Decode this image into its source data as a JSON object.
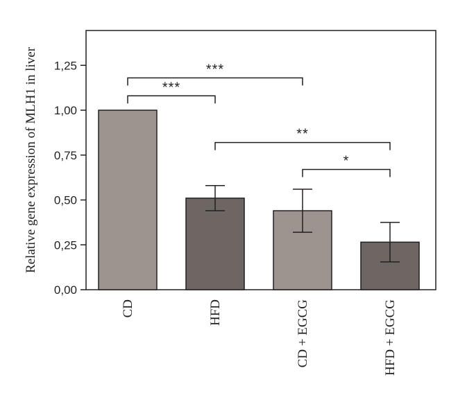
{
  "chart_data": {
    "type": "bar",
    "title": "",
    "xlabel": "",
    "ylabel": "Relative gene expression of MLH1 in liver",
    "ylim": [
      0,
      1.4
    ],
    "yticks": [
      "0,00",
      "0,25",
      "0,50",
      "0,75",
      "1,00",
      "1,25"
    ],
    "ytick_values": [
      0,
      0.25,
      0.5,
      0.75,
      1.0,
      1.25
    ],
    "categories": [
      "CD",
      "HFD",
      "CD + EGCG",
      "HFD + EGCG"
    ],
    "values": [
      1.0,
      0.51,
      0.44,
      0.265
    ],
    "errors": [
      0,
      0.07,
      0.12,
      0.11
    ],
    "bar_colors": [
      "#9d948f",
      "#6e6662",
      "#9d948f",
      "#6e6662"
    ],
    "grid": false,
    "significance": [
      {
        "from": 0,
        "to": 2,
        "label": "***",
        "y": 1.18
      },
      {
        "from": 0,
        "to": 1,
        "label": "***",
        "y": 1.08
      },
      {
        "from": 1,
        "to": 3,
        "label": "**",
        "y": 0.82
      },
      {
        "from": 2,
        "to": 3,
        "label": "*",
        "y": 0.67
      }
    ]
  }
}
